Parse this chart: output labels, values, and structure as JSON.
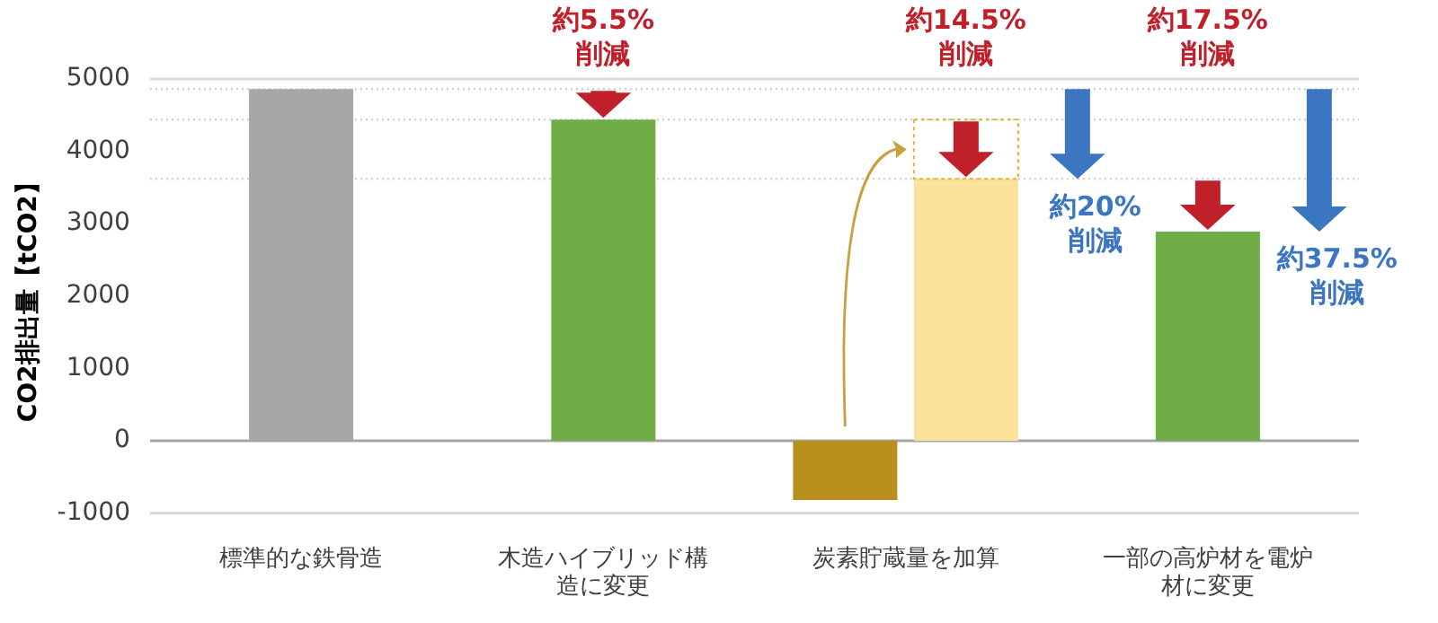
{
  "chart_data": {
    "type": "bar",
    "ylabel": "CO2排出量【tCO2】",
    "categories": [
      "標準的な鉄骨造",
      "木造ハイブリッド構造に変更",
      "炭素貯蔵量を加算",
      "一部の高炉材を電炉材に変更"
    ],
    "series": [
      {
        "color": "#b8901b",
        "values": [
          null,
          null,
          -820,
          null
        ]
      },
      {
        "colors": [
          "#a6a6a6",
          "#70ad47",
          "#fae29b",
          "#70ad47"
        ],
        "values": [
          4860,
          4440,
          3620,
          2890
        ]
      }
    ],
    "ylim": [
      -1000,
      5000
    ],
    "yticks": [
      -1000,
      0,
      1000,
      2000,
      3000,
      4000,
      5000
    ],
    "ref_lines": [
      {
        "axis": "y",
        "value": 4860,
        "color": "#c8c8c8",
        "line_style": "dotted"
      },
      {
        "axis": "y",
        "value": 4440,
        "color": "#c8c8c8",
        "line_style": "dotted"
      },
      {
        "axis": "y",
        "value": 3620,
        "color": "#c8c8c8",
        "line_style": "dotted"
      }
    ],
    "annotations": [
      "約5.5%削減",
      "約14.5%削減",
      {
        "text": "約20%削減",
        "y": 3620
      },
      "約17.5%削減",
      {
        "text": "約37.5%削減",
        "x": "一部の高炉材を電炉材に変更",
        "y": 2890
      }
    ]
  }
}
